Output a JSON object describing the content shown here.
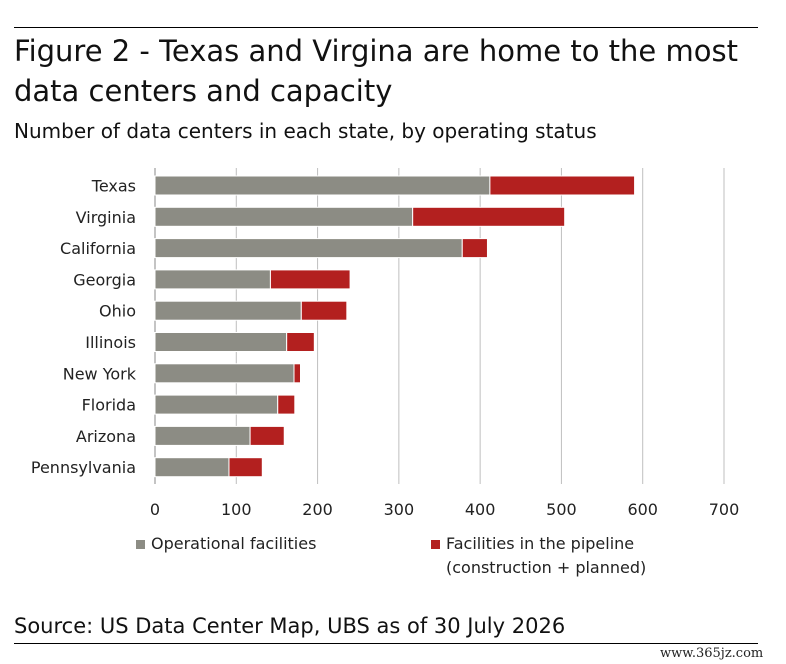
{
  "title": "Figure 2 - Texas and Virgina are home to the most data centers and capacity",
  "subtitle": "Number of data centers in each state, by operating status",
  "source": "Source: US Data Center Map, UBS as of 30 July 2026",
  "watermark": "www.365jz.com",
  "colors": {
    "operational": "#8c8c84",
    "pipeline": "#b3201f",
    "grid": "#bfbfbf"
  },
  "chart_data": {
    "type": "bar",
    "orientation": "horizontal",
    "stacked": true,
    "categories": [
      "Texas",
      "Virginia",
      "California",
      "Georgia",
      "Ohio",
      "Illinois",
      "New York",
      "Florida",
      "Arizona",
      "Pennsylvania"
    ],
    "series": [
      {
        "name": "Operational facilities",
        "values": [
          412,
          317,
          378,
          142,
          180,
          162,
          171,
          151,
          117,
          91
        ]
      },
      {
        "name": "Facilities in the pipeline (construction + planned)",
        "values": [
          178,
          187,
          31,
          98,
          56,
          34,
          8,
          21,
          42,
          41
        ]
      }
    ],
    "xlim": [
      0,
      700
    ],
    "xticks": [
      0,
      100,
      200,
      300,
      400,
      500,
      600,
      700
    ],
    "grid": true,
    "legend_position": "bottom"
  },
  "legend": {
    "operational_label": "Operational facilities",
    "pipeline_label_line1": "Facilities in the pipeline",
    "pipeline_label_line2": "(construction + planned)"
  }
}
